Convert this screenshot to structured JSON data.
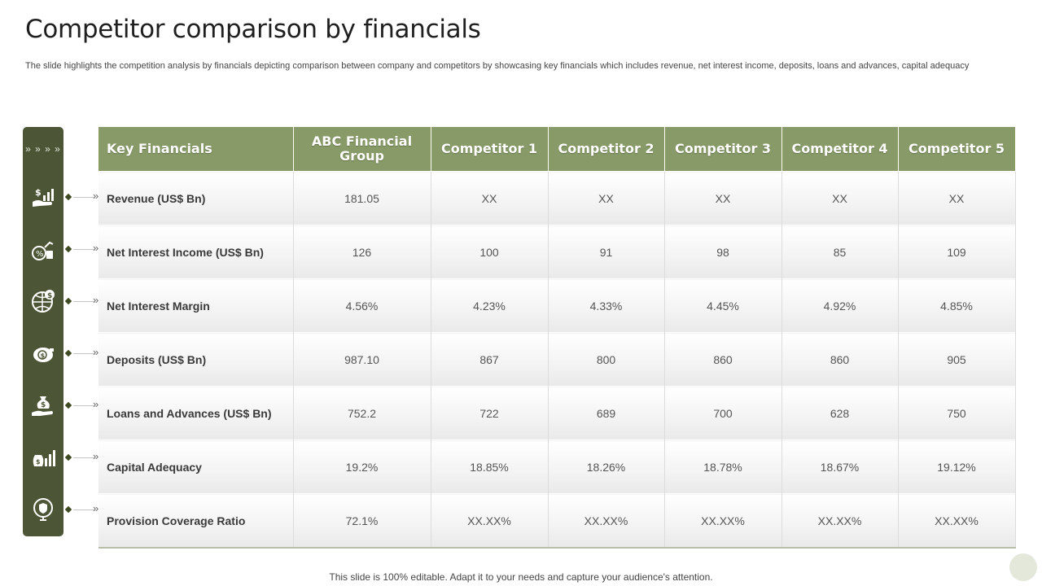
{
  "title": "Competitor comparison by financials",
  "subtitle": "The slide highlights the competition analysis by financials depicting comparison between company and competitors by showcasing key financials which includes revenue, net interest income, deposits, loans and advances, capital adequacy",
  "sidebar": {
    "chevrons": "» » » »"
  },
  "table": {
    "headers": [
      "Key Financials",
      "ABC Financial Group",
      "Competitor 1",
      "Competitor 2",
      "Competitor 3",
      "Competitor 4",
      "Competitor 5"
    ],
    "rows": [
      {
        "icon": "revenue-growth-icon",
        "cells": [
          "Revenue (US$ Bn)",
          "181.05",
          "XX",
          "XX",
          "XX",
          "XX",
          "XX"
        ]
      },
      {
        "icon": "interest-income-icon",
        "cells": [
          "Net Interest Income (US$ Bn)",
          "126",
          "100",
          "91",
          "98",
          "85",
          "109"
        ]
      },
      {
        "icon": "globe-dollar-icon",
        "cells": [
          "Net Interest Margin",
          "4.56%",
          "4.23%",
          "4.33%",
          "4.45%",
          "4.92%",
          "4.85%"
        ]
      },
      {
        "icon": "piggy-bank-icon",
        "cells": [
          "Deposits (US$ Bn)",
          "987.10",
          "867",
          "800",
          "860",
          "860",
          "905"
        ]
      },
      {
        "icon": "money-bag-hand-icon",
        "cells": [
          "Loans and Advances (US$ Bn)",
          "752.2",
          "722",
          "689",
          "700",
          "628",
          "750"
        ]
      },
      {
        "icon": "capital-bars-icon",
        "cells": [
          "Capital Adequacy",
          "19.2%",
          "18.85%",
          "18.26%",
          "18.78%",
          "18.67%",
          "19.12%"
        ]
      },
      {
        "icon": "shield-location-icon",
        "cells": [
          "Provision Coverage Ratio",
          "72.1%",
          "XX.XX%",
          "XX.XX%",
          "XX.XX%",
          "XX.XX%",
          "XX.XX%"
        ]
      }
    ]
  },
  "footer": "This slide is 100% editable. Adapt it to your needs and capture your audience's attention.",
  "colors": {
    "header": "#879a67",
    "sidebar": "#4c5636",
    "accent": "#3e4a22"
  }
}
